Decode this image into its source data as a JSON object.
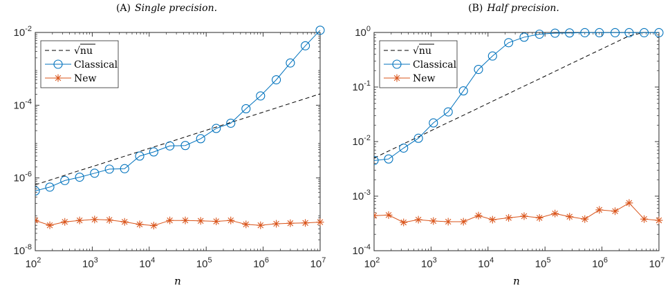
{
  "chart_data": [
    {
      "type": "line",
      "caption_tag": "(A)",
      "title": "Single precision.",
      "xlabel": "n",
      "ylabel": "",
      "xscale": "log",
      "yscale": "log",
      "xlim": [
        100,
        10000000
      ],
      "ylim": [
        1e-08,
        0.01
      ],
      "xticks": [
        {
          "base": "10",
          "exp": "2"
        },
        {
          "base": "10",
          "exp": "3"
        },
        {
          "base": "10",
          "exp": "4"
        },
        {
          "base": "10",
          "exp": "5"
        },
        {
          "base": "10",
          "exp": "6"
        },
        {
          "base": "10",
          "exp": "7"
        }
      ],
      "yticks": [
        {
          "v": 1e-08,
          "base": "10",
          "exp": "-8"
        },
        {
          "v": 1e-06,
          "base": "10",
          "exp": "-6"
        },
        {
          "v": 0.0001,
          "base": "10",
          "exp": "-4"
        },
        {
          "v": 0.01,
          "base": "10",
          "exp": "-2"
        }
      ],
      "legend": {
        "placement": "top-left",
        "entries": [
          "√nu",
          "Classical",
          "New"
        ]
      },
      "x": [
        100,
        180,
        330,
        600,
        1100,
        2000,
        3700,
        6800,
        12000,
        23000,
        43000,
        80000,
        150000,
        270000,
        500000,
        900000,
        1700000,
        3000000,
        5500000,
        10000000
      ],
      "series": [
        {
          "name": "√nu",
          "style": "dashed",
          "color": "#000000",
          "values": [
            6.5e-07,
            8.7e-07,
            1.18e-06,
            1.6e-06,
            2.15e-06,
            2.9e-06,
            3.95e-06,
            5.35e-06,
            7.1e-06,
            9.8e-06,
            1.34e-05,
            1.83e-05,
            2.5e-05,
            3.35e-05,
            4.55e-05,
            6.1e-05,
            8.4e-05,
            0.000112,
            0.000152,
            0.000205
          ]
        },
        {
          "name": "Classical",
          "marker": "circle",
          "color": "#0072BD",
          "values": [
            4.4e-07,
            5.6e-07,
            8.5e-07,
            1.05e-06,
            1.35e-06,
            1.75e-06,
            1.8e-06,
            4e-06,
            5.2e-06,
            7.6e-06,
            7.8e-06,
            1.2e-05,
            2.3e-05,
            3.2e-05,
            8e-05,
            0.00018,
            0.0005,
            0.00145,
            0.0043,
            0.0115
          ]
        },
        {
          "name": "New",
          "marker": "star",
          "color": "#D95319",
          "values": [
            6.8e-08,
            5e-08,
            6.2e-08,
            6.8e-08,
            7.2e-08,
            7e-08,
            6.2e-08,
            5.3e-08,
            4.9e-08,
            6.8e-08,
            6.8e-08,
            6.6e-08,
            6.4e-08,
            6.8e-08,
            5.3e-08,
            5e-08,
            5.5e-08,
            5.7e-08,
            5.8e-08,
            6.1e-08
          ]
        }
      ]
    },
    {
      "type": "line",
      "caption_tag": "(B)",
      "title": "Half precision.",
      "xlabel": "n",
      "ylabel": "",
      "xscale": "log",
      "yscale": "log",
      "xlim": [
        100,
        10000000
      ],
      "ylim": [
        0.0001,
        1
      ],
      "xticks": [
        {
          "base": "10",
          "exp": "2"
        },
        {
          "base": "10",
          "exp": "3"
        },
        {
          "base": "10",
          "exp": "4"
        },
        {
          "base": "10",
          "exp": "5"
        },
        {
          "base": "10",
          "exp": "6"
        },
        {
          "base": "10",
          "exp": "7"
        }
      ],
      "yticks": [
        {
          "v": 0.0001,
          "base": "10",
          "exp": "-4"
        },
        {
          "v": 0.001,
          "base": "10",
          "exp": "-3"
        },
        {
          "v": 0.01,
          "base": "10",
          "exp": "-2"
        },
        {
          "v": 0.1,
          "base": "10",
          "exp": "-1"
        },
        {
          "v": 1,
          "base": "10",
          "exp": "0"
        }
      ],
      "legend": {
        "placement": "top-left",
        "entries": [
          "√nu",
          "Classical",
          "New"
        ]
      },
      "x": [
        100,
        180,
        330,
        600,
        1100,
        2000,
        3700,
        6800,
        12000,
        23000,
        43000,
        80000,
        150000,
        270000,
        500000,
        900000,
        1700000,
        3000000,
        5500000,
        10000000
      ],
      "series": [
        {
          "name": "√nu",
          "style": "dashed",
          "color": "#000000",
          "values": [
            0.005,
            0.0067,
            0.0091,
            0.0122,
            0.0166,
            0.0224,
            0.0304,
            0.0412,
            0.0548,
            0.0758,
            0.104,
            0.141,
            0.194,
            0.26,
            0.354,
            0.474,
            0.652,
            0.866,
            1.0,
            1.0
          ]
        },
        {
          "name": "Classical",
          "marker": "circle",
          "color": "#0072BD",
          "values": [
            0.0045,
            0.0048,
            0.0076,
            0.0115,
            0.022,
            0.035,
            0.085,
            0.21,
            0.37,
            0.65,
            0.82,
            0.93,
            0.97,
            0.98,
            0.99,
            0.99,
            0.99,
            0.99,
            0.99,
            0.99
          ]
        },
        {
          "name": "New",
          "marker": "star",
          "color": "#D95319",
          "values": [
            0.00044,
            0.00045,
            0.00033,
            0.00037,
            0.00035,
            0.00034,
            0.00034,
            0.00044,
            0.00037,
            0.0004,
            0.00043,
            0.0004,
            0.00048,
            0.00042,
            0.00038,
            0.00056,
            0.00053,
            0.00075,
            0.00038,
            0.00036
          ]
        }
      ]
    }
  ]
}
